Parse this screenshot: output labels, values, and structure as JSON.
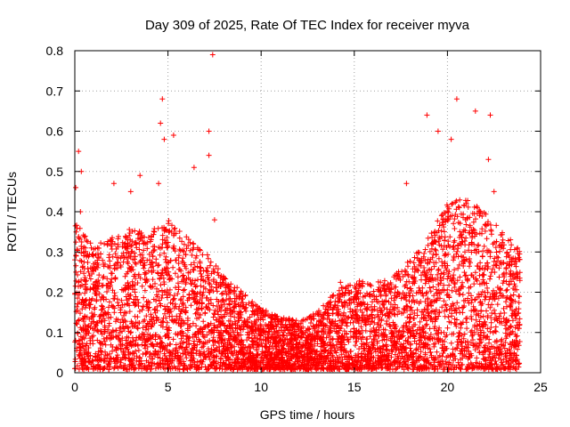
{
  "chart_data": {
    "type": "scatter",
    "title": "Day 309 of 2025, Rate Of TEC Index for receiver myva",
    "xlabel": "GPS time / hours",
    "ylabel": "ROTI / TECUs",
    "xlim": [
      0,
      25
    ],
    "ylim": [
      0,
      0.8
    ],
    "xticks": [
      0,
      5,
      10,
      15,
      20,
      25
    ],
    "yticks": [
      0,
      0.1,
      0.2,
      0.3,
      0.4,
      0.5,
      0.6,
      0.7,
      0.8
    ],
    "xtick_labels": [
      "0",
      "5",
      "10",
      "15",
      "20",
      "25"
    ],
    "ytick_labels": [
      "0",
      "0.1",
      "0.2",
      "0.3",
      "0.4",
      "0.5",
      "0.6",
      "0.7",
      "0.8"
    ],
    "grid": true,
    "marker": "plus",
    "color": "#ff0000",
    "envelope": {
      "description": "approximate upper envelope of the dense ROTI scatter (hour, ROTI)",
      "x": [
        0,
        1,
        2,
        3,
        4,
        5,
        6,
        7,
        8,
        9,
        10,
        11,
        12,
        13,
        14,
        15,
        16,
        17,
        18,
        19,
        20,
        21,
        22,
        23,
        24
      ],
      "upper": [
        0.38,
        0.32,
        0.34,
        0.36,
        0.35,
        0.38,
        0.34,
        0.3,
        0.24,
        0.2,
        0.16,
        0.14,
        0.13,
        0.15,
        0.22,
        0.24,
        0.22,
        0.24,
        0.28,
        0.34,
        0.42,
        0.44,
        0.4,
        0.35,
        0.3
      ]
    },
    "notable_points": [
      {
        "x": 0.05,
        "y": 0.46
      },
      {
        "x": 0.2,
        "y": 0.55
      },
      {
        "x": 0.35,
        "y": 0.5
      },
      {
        "x": 0.3,
        "y": 0.4
      },
      {
        "x": 2.1,
        "y": 0.47
      },
      {
        "x": 3.0,
        "y": 0.45
      },
      {
        "x": 3.5,
        "y": 0.49
      },
      {
        "x": 4.5,
        "y": 0.47
      },
      {
        "x": 4.6,
        "y": 0.62
      },
      {
        "x": 4.7,
        "y": 0.68
      },
      {
        "x": 4.8,
        "y": 0.58
      },
      {
        "x": 5.3,
        "y": 0.59
      },
      {
        "x": 6.4,
        "y": 0.51
      },
      {
        "x": 7.2,
        "y": 0.6
      },
      {
        "x": 7.2,
        "y": 0.54
      },
      {
        "x": 7.4,
        "y": 0.79
      },
      {
        "x": 7.5,
        "y": 0.38
      },
      {
        "x": 17.8,
        "y": 0.47
      },
      {
        "x": 18.9,
        "y": 0.64
      },
      {
        "x": 19.5,
        "y": 0.6
      },
      {
        "x": 20.2,
        "y": 0.58
      },
      {
        "x": 20.5,
        "y": 0.68
      },
      {
        "x": 21.5,
        "y": 0.65
      },
      {
        "x": 22.3,
        "y": 0.64
      },
      {
        "x": 22.2,
        "y": 0.53
      },
      {
        "x": 22.5,
        "y": 0.45
      }
    ]
  }
}
